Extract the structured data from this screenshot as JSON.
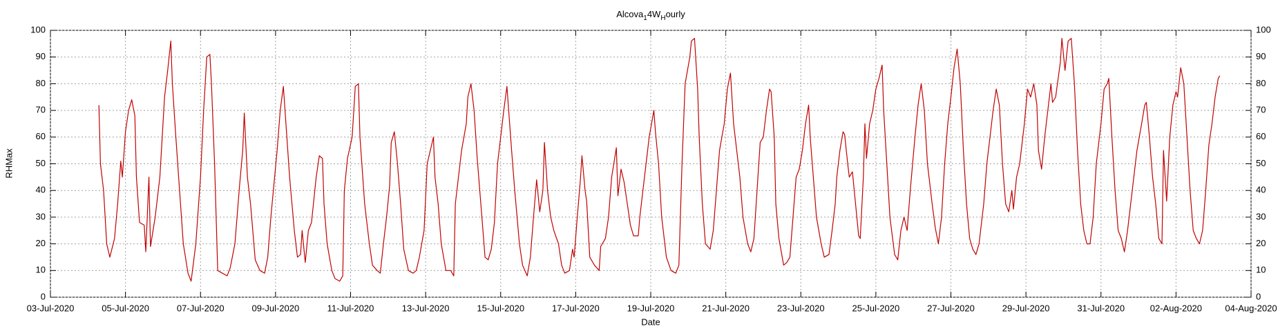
{
  "chart_data": {
    "type": "line",
    "title": [
      "Alcova",
      "1",
      "4W",
      "H",
      "ourly"
    ],
    "xlabel": "Date",
    "ylabel": "RHMax",
    "color": "#c00000",
    "grid": true,
    "x": [
      "2020-07-04 07:00",
      "2020-07-04 08:00",
      "2020-07-04 10:00",
      "2020-07-04 12:00",
      "2020-07-04 14:00",
      "2020-07-04 17:00",
      "2020-07-04 19:00",
      "2020-07-04 21:00",
      "2020-07-04 22:00",
      "2020-07-05 00:00",
      "2020-07-05 02:00",
      "2020-07-05 04:00",
      "2020-07-05 06:00",
      "2020-07-05 07:00",
      "2020-07-05 09:00",
      "2020-07-05 12:00",
      "2020-07-05 13:00",
      "2020-07-05 15:00",
      "2020-07-05 16:00",
      "2020-07-05 19:00",
      "2020-07-05 22:00",
      "2020-07-06 01:00",
      "2020-07-06 03:00",
      "2020-07-06 05:00",
      "2020-07-06 06:00",
      "2020-07-06 08:00",
      "2020-07-06 10:00",
      "2020-07-06 13:00",
      "2020-07-06 16:00",
      "2020-07-06 18:00",
      "2020-07-06 21:00",
      "2020-07-07 00:00",
      "2020-07-07 02:00",
      "2020-07-07 04:00",
      "2020-07-07 06:00",
      "2020-07-07 07:00",
      "2020-07-07 09:00",
      "2020-07-07 11:00",
      "2020-07-07 14:00",
      "2020-07-07 17:00",
      "2020-07-07 19:00",
      "2020-07-07 22:00",
      "2020-07-08 01:00",
      "2020-07-08 03:00",
      "2020-07-08 04:00",
      "2020-07-08 06:00",
      "2020-07-08 08:00",
      "2020-07-08 11:00",
      "2020-07-08 14:00",
      "2020-07-08 17:00",
      "2020-07-08 19:00",
      "2020-07-08 21:00",
      "2020-07-09 01:00",
      "2020-07-09 03:00",
      "2020-07-09 05:00",
      "2020-07-09 07:00",
      "2020-07-09 09:00",
      "2020-07-09 12:00",
      "2020-07-09 14:00",
      "2020-07-09 16:00",
      "2020-07-09 17:00",
      "2020-07-09 19:00",
      "2020-07-09 21:00",
      "2020-07-09 23:00",
      "2020-07-10 02:00",
      "2020-07-10 04:00",
      "2020-07-10 06:00",
      "2020-07-10 07:00",
      "2020-07-10 09:00",
      "2020-07-10 12:00",
      "2020-07-10 14:00",
      "2020-07-10 17:00",
      "2020-07-10 19:00",
      "2020-07-10 20:00",
      "2020-07-10 22:00",
      "2020-07-11 01:00",
      "2020-07-11 03:00",
      "2020-07-11 05:00",
      "2020-07-11 06:00",
      "2020-07-11 09:00",
      "2020-07-11 12:00",
      "2020-07-11 14:00",
      "2020-07-11 17:00",
      "2020-07-11 19:00",
      "2020-07-11 21:00",
      "2020-07-11 23:00",
      "2020-07-12 01:00",
      "2020-07-12 02:00",
      "2020-07-12 04:00",
      "2020-07-12 06:00",
      "2020-07-12 08:00",
      "2020-07-12 10:00",
      "2020-07-12 13:00",
      "2020-07-12 16:00",
      "2020-07-12 18:00",
      "2020-07-12 20:00",
      "2020-07-12 23:00",
      "2020-07-13 01:00",
      "2020-07-13 03:00",
      "2020-07-13 05:00",
      "2020-07-13 06:00",
      "2020-07-13 08:00",
      "2020-07-13 10:00",
      "2020-07-13 13:00",
      "2020-07-13 16:00",
      "2020-07-13 18:00",
      "2020-07-13 19:00",
      "2020-07-13 21:00",
      "2020-07-13 23:00",
      "2020-07-14 02:00",
      "2020-07-14 03:00",
      "2020-07-14 05:00",
      "2020-07-14 07:00",
      "2020-07-14 09:00",
      "2020-07-14 12:00",
      "2020-07-14 14:00",
      "2020-07-14 16:00",
      "2020-07-14 18:00",
      "2020-07-14 20:00",
      "2020-07-14 22:00",
      "2020-07-15 00:00",
      "2020-07-15 02:00",
      "2020-07-15 04:00",
      "2020-07-15 06:00",
      "2020-07-15 07:00",
      "2020-07-15 09:00",
      "2020-07-15 12:00",
      "2020-07-15 14:00",
      "2020-07-15 17:00",
      "2020-07-15 19:00",
      "2020-07-15 21:00",
      "2020-07-15 23:00",
      "2020-07-16 01:00",
      "2020-07-16 03:00",
      "2020-07-16 04:00",
      "2020-07-16 06:00",
      "2020-07-16 08:00",
      "2020-07-16 10:00",
      "2020-07-16 13:00",
      "2020-07-16 15:00",
      "2020-07-16 17:00",
      "2020-07-16 20:00",
      "2020-07-16 22:00",
      "2020-07-16 23:00",
      "2020-07-17 01:00",
      "2020-07-17 03:00",
      "2020-07-17 04:00",
      "2020-07-17 06:00",
      "2020-07-17 07:00",
      "2020-07-17 09:00",
      "2020-07-17 12:00",
      "2020-07-17 15:00",
      "2020-07-17 16:00",
      "2020-07-17 19:00",
      "2020-07-17 21:00",
      "2020-07-17 23:00",
      "2020-07-18 02:00",
      "2020-07-18 03:00",
      "2020-07-18 05:00",
      "2020-07-18 07:00",
      "2020-07-18 09:00",
      "2020-07-18 11:00",
      "2020-07-18 13:00",
      "2020-07-18 16:00",
      "2020-07-18 17:00",
      "2020-07-18 19:00",
      "2020-07-18 21:00",
      "2020-07-18 23:00",
      "2020-07-19 02:00",
      "2020-07-19 03:00",
      "2020-07-19 05:00",
      "2020-07-19 07:00",
      "2020-07-19 10:00",
      "2020-07-19 13:00",
      "2020-07-19 16:00",
      "2020-07-19 18:00",
      "2020-07-19 20:00",
      "2020-07-19 22:00",
      "2020-07-20 01:00",
      "2020-07-20 02:00",
      "2020-07-20 04:00",
      "2020-07-20 06:00",
      "2020-07-20 07:00",
      "2020-07-20 09:00",
      "2020-07-20 11:00",
      "2020-07-20 14:00",
      "2020-07-20 16:00",
      "2020-07-20 18:00",
      "2020-07-20 20:00",
      "2020-07-20 23:00",
      "2020-07-21 01:00",
      "2020-07-21 03:00",
      "2020-07-21 05:00",
      "2020-07-21 07:00",
      "2020-07-21 09:00",
      "2020-07-21 11:00",
      "2020-07-21 14:00",
      "2020-07-21 16:00",
      "2020-07-21 18:00",
      "2020-07-21 20:00",
      "2020-07-21 22:00",
      "2020-07-22 00:00",
      "2020-07-22 02:00",
      "2020-07-22 04:00",
      "2020-07-22 05:00",
      "2020-07-22 07:00",
      "2020-07-22 08:00",
      "2020-07-22 10:00",
      "2020-07-22 13:00",
      "2020-07-22 15:00",
      "2020-07-22 17:00",
      "2020-07-22 19:00",
      "2020-07-22 21:00",
      "2020-07-22 23:00",
      "2020-07-23 01:00",
      "2020-07-23 03:00",
      "2020-07-23 05:00",
      "2020-07-23 06:00",
      "2020-07-23 08:00",
      "2020-07-23 10:00",
      "2020-07-23 13:00",
      "2020-07-23 15:00",
      "2020-07-23 18:00",
      "2020-07-23 20:00",
      "2020-07-23 22:00",
      "2020-07-23 23:00",
      "2020-07-24 01:00",
      "2020-07-24 03:00",
      "2020-07-24 04:00",
      "2020-07-24 06:00",
      "2020-07-24 07:00",
      "2020-07-24 09:00",
      "2020-07-24 11:00",
      "2020-07-24 13:00",
      "2020-07-24 14:00",
      "2020-07-24 16:00",
      "2020-07-24 17:00",
      "2020-07-24 18:00",
      "2020-07-24 20:00",
      "2020-07-24 22:00",
      "2020-07-25 00:00",
      "2020-07-25 02:00",
      "2020-07-25 04:00",
      "2020-07-25 05:00",
      "2020-07-25 07:00",
      "2020-07-25 09:00",
      "2020-07-25 12:00",
      "2020-07-25 14:00",
      "2020-07-25 16:00",
      "2020-07-25 18:00",
      "2020-07-25 20:00",
      "2020-07-25 22:00",
      "2020-07-26 01:00",
      "2020-07-26 03:00",
      "2020-07-26 05:00",
      "2020-07-26 07:00",
      "2020-07-26 09:00",
      "2020-07-26 12:00",
      "2020-07-26 14:00",
      "2020-07-26 16:00",
      "2020-07-26 18:00",
      "2020-07-26 20:00",
      "2020-07-26 22:00",
      "2020-07-27 00:00",
      "2020-07-27 02:00",
      "2020-07-27 04:00",
      "2020-07-27 06:00",
      "2020-07-27 08:00",
      "2020-07-27 10:00",
      "2020-07-27 12:00",
      "2020-07-27 14:00",
      "2020-07-27 16:00",
      "2020-07-27 18:00",
      "2020-07-27 21:00",
      "2020-07-27 23:00",
      "2020-07-28 01:00",
      "2020-07-28 03:00",
      "2020-07-28 05:00",
      "2020-07-28 07:00",
      "2020-07-28 09:00",
      "2020-07-28 11:00",
      "2020-07-28 13:00",
      "2020-07-28 15:00",
      "2020-07-28 16:00",
      "2020-07-28 18:00",
      "2020-07-28 20:00",
      "2020-07-28 23:00",
      "2020-07-29 01:00",
      "2020-07-29 03:00",
      "2020-07-29 05:00",
      "2020-07-29 07:00",
      "2020-07-29 08:00",
      "2020-07-29 10:00",
      "2020-07-29 12:00",
      "2020-07-29 14:00",
      "2020-07-29 16:00",
      "2020-07-29 17:00",
      "2020-07-29 19:00",
      "2020-07-29 22:00",
      "2020-07-29 23:00",
      "2020-07-30 01:00",
      "2020-07-30 03:00",
      "2020-07-30 05:00",
      "2020-07-30 07:00",
      "2020-07-30 09:00",
      "2020-07-30 11:00",
      "2020-07-30 13:00",
      "2020-07-30 15:00",
      "2020-07-30 17:00",
      "2020-07-30 19:00",
      "2020-07-30 21:00",
      "2020-07-31 00:00",
      "2020-07-31 02:00",
      "2020-07-31 04:00",
      "2020-07-31 05:00",
      "2020-07-31 07:00",
      "2020-07-31 09:00",
      "2020-07-31 11:00",
      "2020-07-31 13:00",
      "2020-07-31 15:00",
      "2020-07-31 17:00",
      "2020-07-31 19:00",
      "2020-07-31 21:00",
      "2020-07-31 23:00",
      "2020-08-01 02:00",
      "2020-08-01 04:00",
      "2020-08-01 05:00",
      "2020-08-01 07:00",
      "2020-08-01 09:00",
      "2020-08-01 11:00",
      "2020-08-01 13:00",
      "2020-08-01 15:00",
      "2020-08-01 16:00",
      "2020-08-01 18:00",
      "2020-08-01 20:00",
      "2020-08-01 22:00",
      "2020-08-02 00:00",
      "2020-08-02 01:00",
      "2020-08-02 03:00",
      "2020-08-02 05:00",
      "2020-08-02 07:00",
      "2020-08-02 09:00",
      "2020-08-02 11:00",
      "2020-08-02 13:00",
      "2020-08-02 15:00",
      "2020-08-02 17:00",
      "2020-08-02 19:00",
      "2020-08-02 21:00",
      "2020-08-02 23:00",
      "2020-08-03 01:00",
      "2020-08-03 03:00",
      "2020-08-03 04:00"
    ],
    "values": [
      72,
      50,
      40,
      20,
      15,
      22,
      35,
      51,
      45,
      62,
      70,
      74,
      68,
      45,
      28,
      27,
      17,
      45,
      19,
      30,
      45,
      75,
      85,
      96,
      80,
      62,
      45,
      20,
      9,
      6,
      20,
      45,
      70,
      90,
      91,
      80,
      50,
      10,
      9,
      8,
      11,
      20,
      42,
      55,
      69,
      45,
      35,
      14,
      10,
      9,
      15,
      30,
      55,
      70,
      79,
      62,
      45,
      25,
      15,
      16,
      25,
      13,
      25,
      28,
      45,
      53,
      52,
      35,
      20,
      10,
      7,
      6,
      8,
      40,
      52,
      60,
      79,
      80,
      60,
      35,
      20,
      12,
      10,
      9,
      20,
      30,
      42,
      58,
      62,
      50,
      35,
      18,
      10,
      9,
      10,
      15,
      25,
      50,
      55,
      60,
      45,
      35,
      20,
      10,
      10,
      8,
      35,
      45,
      55,
      65,
      75,
      80,
      70,
      52,
      30,
      15,
      14,
      18,
      28,
      50,
      60,
      70,
      79,
      63,
      55,
      40,
      20,
      12,
      8,
      15,
      30,
      44,
      32,
      40,
      58,
      40,
      30,
      25,
      20,
      12,
      9,
      10,
      18,
      15,
      30,
      44,
      53,
      40,
      36,
      15,
      12,
      10,
      19,
      22,
      30,
      45,
      56,
      38,
      48,
      43,
      35,
      27,
      23,
      23,
      30,
      40,
      50,
      60,
      70,
      62,
      50,
      30,
      15,
      10,
      9,
      12,
      50,
      80,
      90,
      96,
      97,
      78,
      60,
      35,
      20,
      18,
      25,
      40,
      55,
      65,
      78,
      84,
      65,
      55,
      45,
      30,
      20,
      17,
      22,
      40,
      58,
      60,
      70,
      78,
      77,
      60,
      35,
      22,
      12,
      13,
      15,
      30,
      45,
      48,
      55,
      65,
      72,
      60,
      45,
      30,
      20,
      15,
      16,
      25,
      35,
      45,
      55,
      62,
      61,
      50,
      45,
      47,
      35,
      23,
      22,
      45,
      65,
      52,
      65,
      70,
      78,
      82,
      87,
      70,
      50,
      30,
      16,
      14,
      25,
      30,
      25,
      40,
      60,
      72,
      80,
      70,
      50,
      35,
      26,
      20,
      30,
      50,
      65,
      75,
      86,
      93,
      80,
      55,
      35,
      22,
      18,
      16,
      20,
      35,
      50,
      60,
      70,
      78,
      72,
      50,
      35,
      32,
      40,
      33,
      45,
      50,
      65,
      78,
      75,
      80,
      72,
      55,
      48,
      60,
      70,
      80,
      73,
      75,
      88,
      97,
      85,
      96,
      97,
      80,
      55,
      35,
      25,
      20,
      20,
      30,
      50,
      65,
      78,
      80,
      82,
      60,
      40,
      25,
      22,
      17,
      25,
      35,
      45,
      55,
      65,
      72,
      73,
      60,
      45,
      35,
      22,
      20,
      55,
      36,
      60,
      72,
      77,
      75,
      86,
      80,
      60,
      40,
      25,
      22,
      20,
      25,
      40,
      57,
      65,
      75,
      82,
      83
    ],
    "xlim": [
      "2020-07-03",
      "2020-08-04"
    ],
    "xticks": [
      {
        "value": "2020-07-03",
        "label": "03-Jul-2020"
      },
      {
        "value": "2020-07-05",
        "label": "05-Jul-2020"
      },
      {
        "value": "2020-07-07",
        "label": "07-Jul-2020"
      },
      {
        "value": "2020-07-09",
        "label": "09-Jul-2020"
      },
      {
        "value": "2020-07-11",
        "label": "11-Jul-2020"
      },
      {
        "value": "2020-07-13",
        "label": "13-Jul-2020"
      },
      {
        "value": "2020-07-15",
        "label": "15-Jul-2020"
      },
      {
        "value": "2020-07-17",
        "label": "17-Jul-2020"
      },
      {
        "value": "2020-07-19",
        "label": "19-Jul-2020"
      },
      {
        "value": "2020-07-21",
        "label": "21-Jul-2020"
      },
      {
        "value": "2020-07-23",
        "label": "23-Jul-2020"
      },
      {
        "value": "2020-07-25",
        "label": "25-Jul-2020"
      },
      {
        "value": "2020-07-27",
        "label": "27-Jul-2020"
      },
      {
        "value": "2020-07-29",
        "label": "29-Jul-2020"
      },
      {
        "value": "2020-07-31",
        "label": "31-Jul-2020"
      },
      {
        "value": "2020-08-02",
        "label": "02-Aug-2020"
      },
      {
        "value": "2020-08-04",
        "label": "04-Aug-2020"
      }
    ],
    "ylim": [
      0,
      100
    ],
    "yticks": [
      0,
      10,
      20,
      30,
      40,
      50,
      60,
      70,
      80,
      90,
      100
    ],
    "y2lim": [
      0,
      100
    ],
    "y2ticks": [
      0,
      10,
      20,
      30,
      40,
      50,
      60,
      70,
      80,
      90,
      100
    ]
  }
}
